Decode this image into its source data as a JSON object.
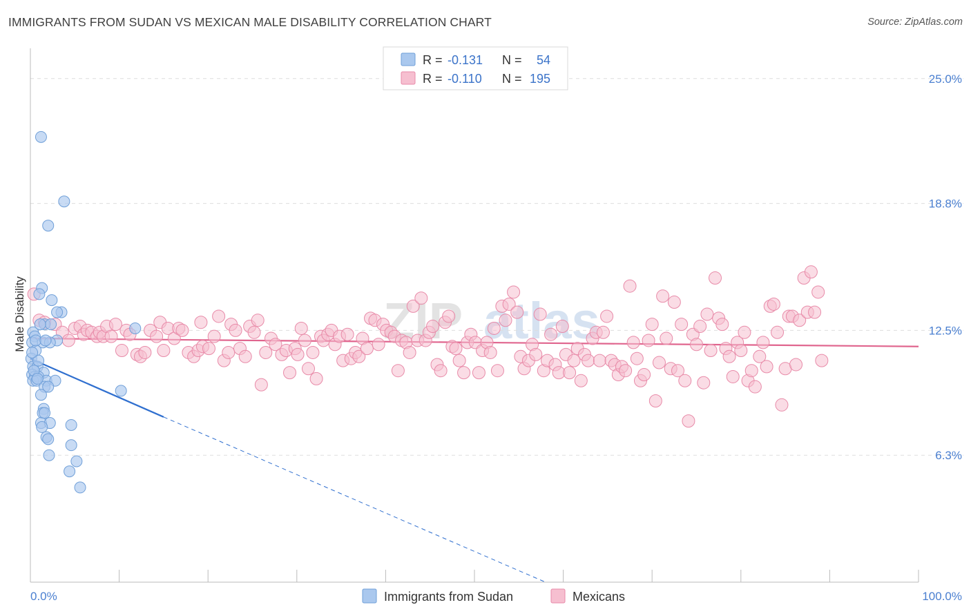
{
  "title": "IMMIGRANTS FROM SUDAN VS MEXICAN MALE DISABILITY CORRELATION CHART",
  "source": "Source: ZipAtlas.com",
  "watermark": {
    "part1": "ZIP",
    "part2": "atlas"
  },
  "colors": {
    "sudan_fill": "#aac8ee",
    "sudan_stroke": "#6f9fd8",
    "sudan_line": "#2f6fcf",
    "mex_fill": "#f6bfd0",
    "mex_stroke": "#e88aa8",
    "mex_line": "#e0658e",
    "axis_label": "#4a7fd0",
    "grid": "#dddddd"
  },
  "legend": {
    "rows": [
      {
        "r_label": "R =",
        "r_value": "-0.131",
        "n_label": "N =",
        "n_value": "54"
      },
      {
        "r_label": "R =",
        "r_value": "-0.110",
        "n_label": "N =",
        "n_value": "195"
      }
    ]
  },
  "bottom_legend": {
    "sudan": "Immigrants from Sudan",
    "mexicans": "Mexicans"
  },
  "chart_data": {
    "type": "scatter",
    "title": "IMMIGRANTS FROM SUDAN VS MEXICAN MALE DISABILITY CORRELATION CHART",
    "xlabel": "",
    "ylabel": "Male Disability",
    "xlim": [
      0,
      100
    ],
    "ylim": [
      0,
      26.5
    ],
    "x_tick_labels": {
      "min": "0.0%",
      "max": "100.0%"
    },
    "y_ticks": [
      {
        "value": 6.3,
        "label": "6.3%"
      },
      {
        "value": 12.5,
        "label": "12.5%"
      },
      {
        "value": 18.8,
        "label": "18.8%"
      },
      {
        "value": 25.0,
        "label": "25.0%"
      }
    ],
    "series": [
      {
        "name": "Immigrants from Sudan",
        "R": -0.131,
        "N": 54,
        "trend": {
          "x0": 0,
          "y0": 11.1,
          "x1": 15,
          "y1": 8.2,
          "dashed_to_x": 58,
          "dashed_to_y": 0
        },
        "points": [
          [
            1.2,
            22.1
          ],
          [
            3.8,
            18.9
          ],
          [
            2.0,
            17.7
          ],
          [
            1.3,
            14.6
          ],
          [
            1.0,
            14.3
          ],
          [
            2.4,
            14.0
          ],
          [
            3.5,
            13.4
          ],
          [
            3.0,
            13.4
          ],
          [
            1.6,
            12.8
          ],
          [
            2.3,
            12.8
          ],
          [
            0.3,
            12.4
          ],
          [
            0.5,
            12.2
          ],
          [
            3.0,
            12.0
          ],
          [
            0.2,
            11.9
          ],
          [
            1.4,
            11.9
          ],
          [
            2.2,
            11.9
          ],
          [
            0.6,
            11.5
          ],
          [
            0.1,
            11.1
          ],
          [
            0.3,
            10.7
          ],
          [
            0.8,
            10.7
          ],
          [
            1.5,
            10.4
          ],
          [
            0.2,
            10.3
          ],
          [
            0.5,
            10.2
          ],
          [
            0.9,
            10.2
          ],
          [
            0.3,
            10.0
          ],
          [
            0.7,
            10.0
          ],
          [
            1.8,
            10.0
          ],
          [
            2.8,
            10.0
          ],
          [
            1.6,
            9.7
          ],
          [
            2.0,
            9.7
          ],
          [
            1.2,
            9.3
          ],
          [
            10.2,
            9.5
          ],
          [
            1.5,
            8.6
          ],
          [
            1.4,
            8.4
          ],
          [
            1.6,
            8.4
          ],
          [
            1.2,
            7.9
          ],
          [
            2.2,
            7.9
          ],
          [
            4.6,
            7.8
          ],
          [
            1.3,
            7.7
          ],
          [
            1.8,
            7.2
          ],
          [
            2.0,
            7.1
          ],
          [
            4.6,
            6.8
          ],
          [
            2.1,
            6.3
          ],
          [
            5.2,
            6.0
          ],
          [
            4.4,
            5.5
          ],
          [
            5.6,
            4.7
          ],
          [
            11.8,
            12.6
          ],
          [
            0.6,
            12.0
          ],
          [
            0.4,
            10.5
          ],
          [
            0.9,
            11.0
          ],
          [
            1.1,
            12.8
          ],
          [
            0.2,
            11.4
          ],
          [
            0.8,
            10.1
          ],
          [
            1.7,
            12.0
          ]
        ]
      },
      {
        "name": "Mexicans",
        "R": -0.11,
        "N": 195,
        "trend": {
          "x0": 0,
          "y0": 12.1,
          "x1": 100,
          "y1": 11.7
        },
        "points": [
          [
            0.4,
            14.3
          ],
          [
            1.0,
            13.0
          ],
          [
            1.6,
            12.9
          ],
          [
            2.8,
            12.8
          ],
          [
            3.6,
            12.4
          ],
          [
            4.3,
            12.0
          ],
          [
            5.0,
            12.6
          ],
          [
            5.6,
            12.7
          ],
          [
            6.0,
            12.3
          ],
          [
            6.4,
            12.5
          ],
          [
            6.9,
            12.4
          ],
          [
            7.5,
            12.2
          ],
          [
            7.8,
            12.4
          ],
          [
            8.2,
            12.2
          ],
          [
            8.6,
            12.7
          ],
          [
            9.1,
            12.2
          ],
          [
            9.6,
            12.8
          ],
          [
            10.3,
            11.5
          ],
          [
            10.8,
            12.5
          ],
          [
            11.2,
            12.3
          ],
          [
            12.0,
            11.3
          ],
          [
            12.4,
            11.2
          ],
          [
            12.9,
            11.4
          ],
          [
            13.5,
            12.5
          ],
          [
            14.2,
            12.2
          ],
          [
            14.6,
            12.9
          ],
          [
            15.0,
            11.5
          ],
          [
            15.5,
            12.6
          ],
          [
            16.2,
            12.1
          ],
          [
            16.7,
            12.6
          ],
          [
            17.1,
            12.5
          ],
          [
            17.8,
            11.4
          ],
          [
            18.4,
            11.2
          ],
          [
            18.9,
            11.5
          ],
          [
            19.4,
            11.7
          ],
          [
            19.2,
            12.9
          ],
          [
            20.1,
            11.6
          ],
          [
            20.7,
            12.2
          ],
          [
            21.2,
            13.2
          ],
          [
            21.8,
            11.0
          ],
          [
            22.3,
            11.4
          ],
          [
            22.6,
            12.8
          ],
          [
            23.1,
            12.5
          ],
          [
            23.6,
            11.6
          ],
          [
            24.2,
            11.2
          ],
          [
            24.7,
            12.7
          ],
          [
            25.2,
            12.4
          ],
          [
            25.6,
            13.0
          ],
          [
            26.0,
            9.8
          ],
          [
            26.5,
            11.4
          ],
          [
            27.1,
            12.1
          ],
          [
            27.6,
            11.8
          ],
          [
            28.3,
            11.3
          ],
          [
            28.8,
            11.5
          ],
          [
            29.2,
            10.4
          ],
          [
            29.8,
            11.6
          ],
          [
            30.1,
            11.3
          ],
          [
            30.5,
            12.6
          ],
          [
            30.9,
            12.0
          ],
          [
            31.3,
            10.6
          ],
          [
            31.8,
            11.4
          ],
          [
            32.2,
            10.1
          ],
          [
            32.7,
            12.2
          ],
          [
            33.0,
            12.0
          ],
          [
            33.5,
            12.3
          ],
          [
            33.9,
            12.5
          ],
          [
            34.3,
            11.8
          ],
          [
            34.8,
            12.2
          ],
          [
            35.2,
            11.0
          ],
          [
            35.7,
            12.3
          ],
          [
            36.1,
            11.1
          ],
          [
            36.6,
            11.4
          ],
          [
            37.0,
            11.2
          ],
          [
            37.4,
            12.1
          ],
          [
            37.9,
            11.6
          ],
          [
            38.3,
            13.1
          ],
          [
            38.8,
            13.0
          ],
          [
            39.2,
            11.8
          ],
          [
            39.7,
            12.8
          ],
          [
            40.1,
            12.5
          ],
          [
            40.6,
            12.4
          ],
          [
            41.0,
            12.2
          ],
          [
            41.4,
            10.5
          ],
          [
            41.8,
            12.0
          ],
          [
            42.3,
            11.9
          ],
          [
            42.7,
            11.4
          ],
          [
            43.1,
            13.7
          ],
          [
            43.6,
            12.0
          ],
          [
            44.0,
            14.1
          ],
          [
            44.5,
            12.0
          ],
          [
            44.9,
            12.4
          ],
          [
            45.3,
            12.7
          ],
          [
            45.8,
            10.8
          ],
          [
            46.2,
            10.5
          ],
          [
            46.7,
            12.9
          ],
          [
            47.1,
            13.2
          ],
          [
            47.5,
            11.7
          ],
          [
            47.9,
            11.6
          ],
          [
            48.3,
            11.0
          ],
          [
            48.8,
            10.4
          ],
          [
            49.2,
            11.9
          ],
          [
            49.6,
            12.3
          ],
          [
            50.1,
            11.9
          ],
          [
            50.5,
            10.4
          ],
          [
            50.9,
            11.5
          ],
          [
            51.4,
            11.9
          ],
          [
            51.8,
            11.4
          ],
          [
            52.2,
            12.6
          ],
          [
            52.6,
            10.5
          ],
          [
            53.1,
            13.7
          ],
          [
            53.5,
            13.0
          ],
          [
            53.9,
            13.8
          ],
          [
            54.4,
            14.4
          ],
          [
            54.8,
            13.4
          ],
          [
            55.2,
            11.2
          ],
          [
            55.6,
            10.6
          ],
          [
            56.1,
            11.0
          ],
          [
            56.5,
            11.8
          ],
          [
            56.9,
            11.3
          ],
          [
            57.4,
            13.3
          ],
          [
            57.8,
            10.5
          ],
          [
            58.2,
            11.0
          ],
          [
            58.6,
            12.3
          ],
          [
            59.1,
            10.8
          ],
          [
            59.5,
            10.4
          ],
          [
            59.9,
            12.7
          ],
          [
            60.3,
            11.3
          ],
          [
            60.7,
            10.4
          ],
          [
            61.2,
            11.0
          ],
          [
            61.6,
            11.6
          ],
          [
            62.0,
            10.0
          ],
          [
            62.4,
            11.3
          ],
          [
            62.8,
            11.0
          ],
          [
            63.3,
            12.1
          ],
          [
            63.7,
            12.4
          ],
          [
            64.1,
            11.0
          ],
          [
            64.5,
            12.4
          ],
          [
            64.9,
            13.2
          ],
          [
            65.4,
            11.0
          ],
          [
            65.8,
            10.8
          ],
          [
            66.2,
            10.3
          ],
          [
            66.6,
            10.7
          ],
          [
            67.0,
            10.5
          ],
          [
            67.5,
            14.7
          ],
          [
            67.9,
            11.9
          ],
          [
            68.3,
            11.1
          ],
          [
            68.7,
            10.0
          ],
          [
            69.1,
            10.3
          ],
          [
            69.6,
            12.0
          ],
          [
            70.0,
            12.8
          ],
          [
            70.4,
            9.0
          ],
          [
            70.8,
            10.9
          ],
          [
            71.2,
            14.2
          ],
          [
            71.6,
            12.1
          ],
          [
            72.1,
            10.6
          ],
          [
            72.5,
            13.9
          ],
          [
            72.9,
            10.5
          ],
          [
            73.3,
            12.8
          ],
          [
            73.7,
            10.0
          ],
          [
            74.1,
            8.0
          ],
          [
            74.6,
            12.3
          ],
          [
            75.0,
            11.8
          ],
          [
            75.4,
            12.7
          ],
          [
            75.8,
            9.9
          ],
          [
            76.2,
            13.3
          ],
          [
            76.6,
            11.5
          ],
          [
            77.1,
            15.1
          ],
          [
            77.5,
            13.1
          ],
          [
            77.9,
            12.8
          ],
          [
            78.3,
            11.6
          ],
          [
            78.7,
            11.2
          ],
          [
            79.1,
            10.2
          ],
          [
            79.6,
            11.9
          ],
          [
            80.0,
            11.5
          ],
          [
            80.4,
            12.4
          ],
          [
            80.8,
            10.0
          ],
          [
            81.2,
            10.5
          ],
          [
            81.6,
            9.7
          ],
          [
            82.1,
            11.2
          ],
          [
            82.5,
            11.9
          ],
          [
            82.9,
            10.7
          ],
          [
            83.3,
            13.7
          ],
          [
            83.7,
            13.8
          ],
          [
            84.1,
            12.4
          ],
          [
            84.6,
            8.8
          ],
          [
            85.0,
            10.6
          ],
          [
            85.4,
            13.2
          ],
          [
            85.8,
            13.2
          ],
          [
            86.2,
            10.8
          ],
          [
            86.6,
            13.0
          ],
          [
            87.1,
            15.1
          ],
          [
            87.5,
            13.4
          ],
          [
            87.9,
            15.4
          ],
          [
            88.3,
            13.4
          ],
          [
            88.7,
            14.4
          ],
          [
            89.1,
            11.0
          ]
        ]
      }
    ]
  }
}
